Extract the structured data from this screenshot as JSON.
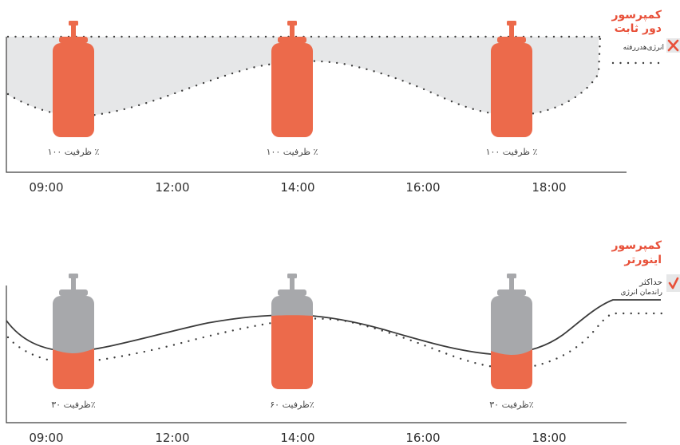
{
  "colors": {
    "orange": "#ec6a4b",
    "gray_tank": "#a7a8ab",
    "band": "#e6e7e8",
    "red_text": "#e8513a",
    "axis": "#3d3d3d"
  },
  "panels": [
    {
      "title_line1": "کمپرسور",
      "title_line2": "دور ثابت",
      "legend_icon": "cross-icon",
      "legend_text": "انرژی‌هدررفته",
      "time_labels": [
        "09:00",
        "12:00",
        "14:00",
        "16:00",
        "18:00"
      ],
      "cylinders": [
        {
          "fill_fraction": 1.0,
          "label": "ظرفیت ۱۰۰ ٪"
        },
        {
          "fill_fraction": 1.0,
          "label": "ظرفیت ۱۰۰ ٪"
        },
        {
          "fill_fraction": 1.0,
          "label": "ظرفیت ۱۰۰ ٪"
        }
      ]
    },
    {
      "title_line1": "کمپرسور",
      "title_line2": "اینورتر",
      "legend_icon": "check-icon",
      "legend_line1": "حداکثر",
      "legend_line2": "راندمان انرژی",
      "time_labels": [
        "09:00",
        "12:00",
        "14:00",
        "16:00",
        "18:00"
      ],
      "cylinders": [
        {
          "fill_fraction": 0.3,
          "label": "ظرفیت ۳۰٪"
        },
        {
          "fill_fraction": 0.6,
          "label": "ظرفیت ۶۰٪"
        },
        {
          "fill_fraction": 0.3,
          "label": "ظرفیت ۳۰٪"
        }
      ]
    }
  ]
}
